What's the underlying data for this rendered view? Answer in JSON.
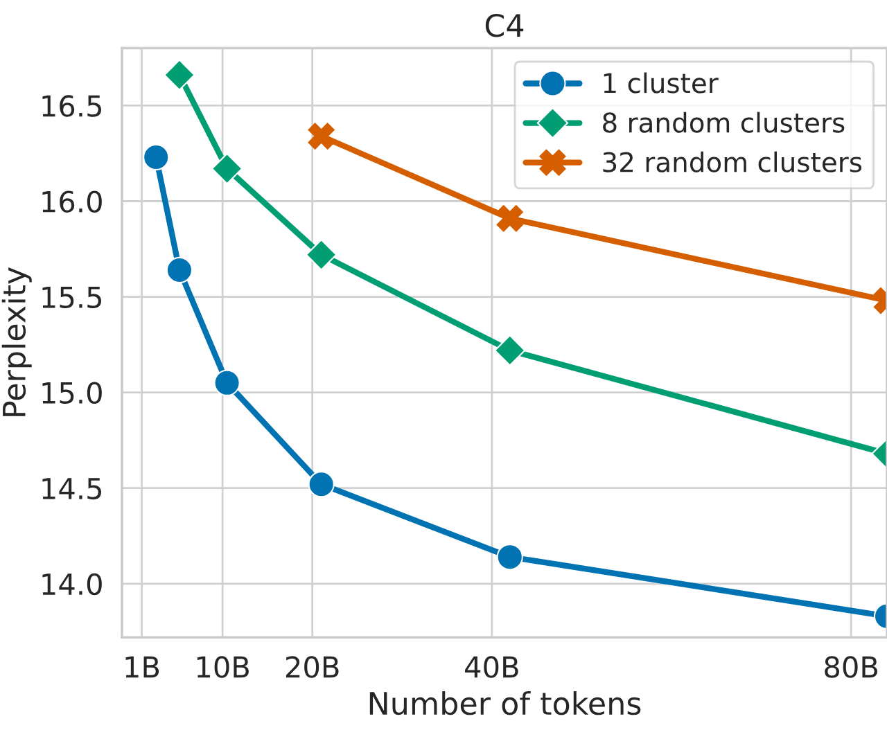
{
  "chart_data": {
    "type": "line",
    "title": "C4",
    "xlabel": "Number of tokens",
    "ylabel": "Perplexity",
    "xlim": [
      -1.2,
      84
    ],
    "xticks": [
      {
        "value": 1,
        "label": "1B"
      },
      {
        "value": 10,
        "label": "10B"
      },
      {
        "value": 20,
        "label": "20B"
      },
      {
        "value": 40,
        "label": "40B"
      },
      {
        "value": 80,
        "label": "80B"
      }
    ],
    "ylim": [
      13.72,
      16.8
    ],
    "yticks": [
      {
        "value": 14.0,
        "label": "14.0"
      },
      {
        "value": 14.5,
        "label": "14.5"
      },
      {
        "value": 15.0,
        "label": "15.0"
      },
      {
        "value": 15.5,
        "label": "15.5"
      },
      {
        "value": 16.0,
        "label": "16.0"
      },
      {
        "value": 16.5,
        "label": "16.5"
      }
    ],
    "grid": true,
    "legend": "top right",
    "line_style": "solid",
    "series": [
      {
        "name": "1 cluster",
        "color": "#0173b2",
        "marker": "circle",
        "x": [
          2.6,
          5.2,
          10.5,
          21,
          42,
          84
        ],
        "values": [
          16.23,
          15.64,
          15.05,
          14.52,
          14.14,
          13.83
        ]
      },
      {
        "name": "8 random clusters",
        "color": "#029e73",
        "marker": "diamond",
        "x": [
          5.2,
          10.5,
          21,
          42,
          84
        ],
        "values": [
          16.66,
          16.17,
          15.72,
          15.22,
          14.68
        ]
      },
      {
        "name": "32 random clusters",
        "color": "#d55e00",
        "marker": "cross",
        "x": [
          21,
          42,
          84
        ],
        "values": [
          16.34,
          15.91,
          15.48
        ]
      }
    ]
  }
}
